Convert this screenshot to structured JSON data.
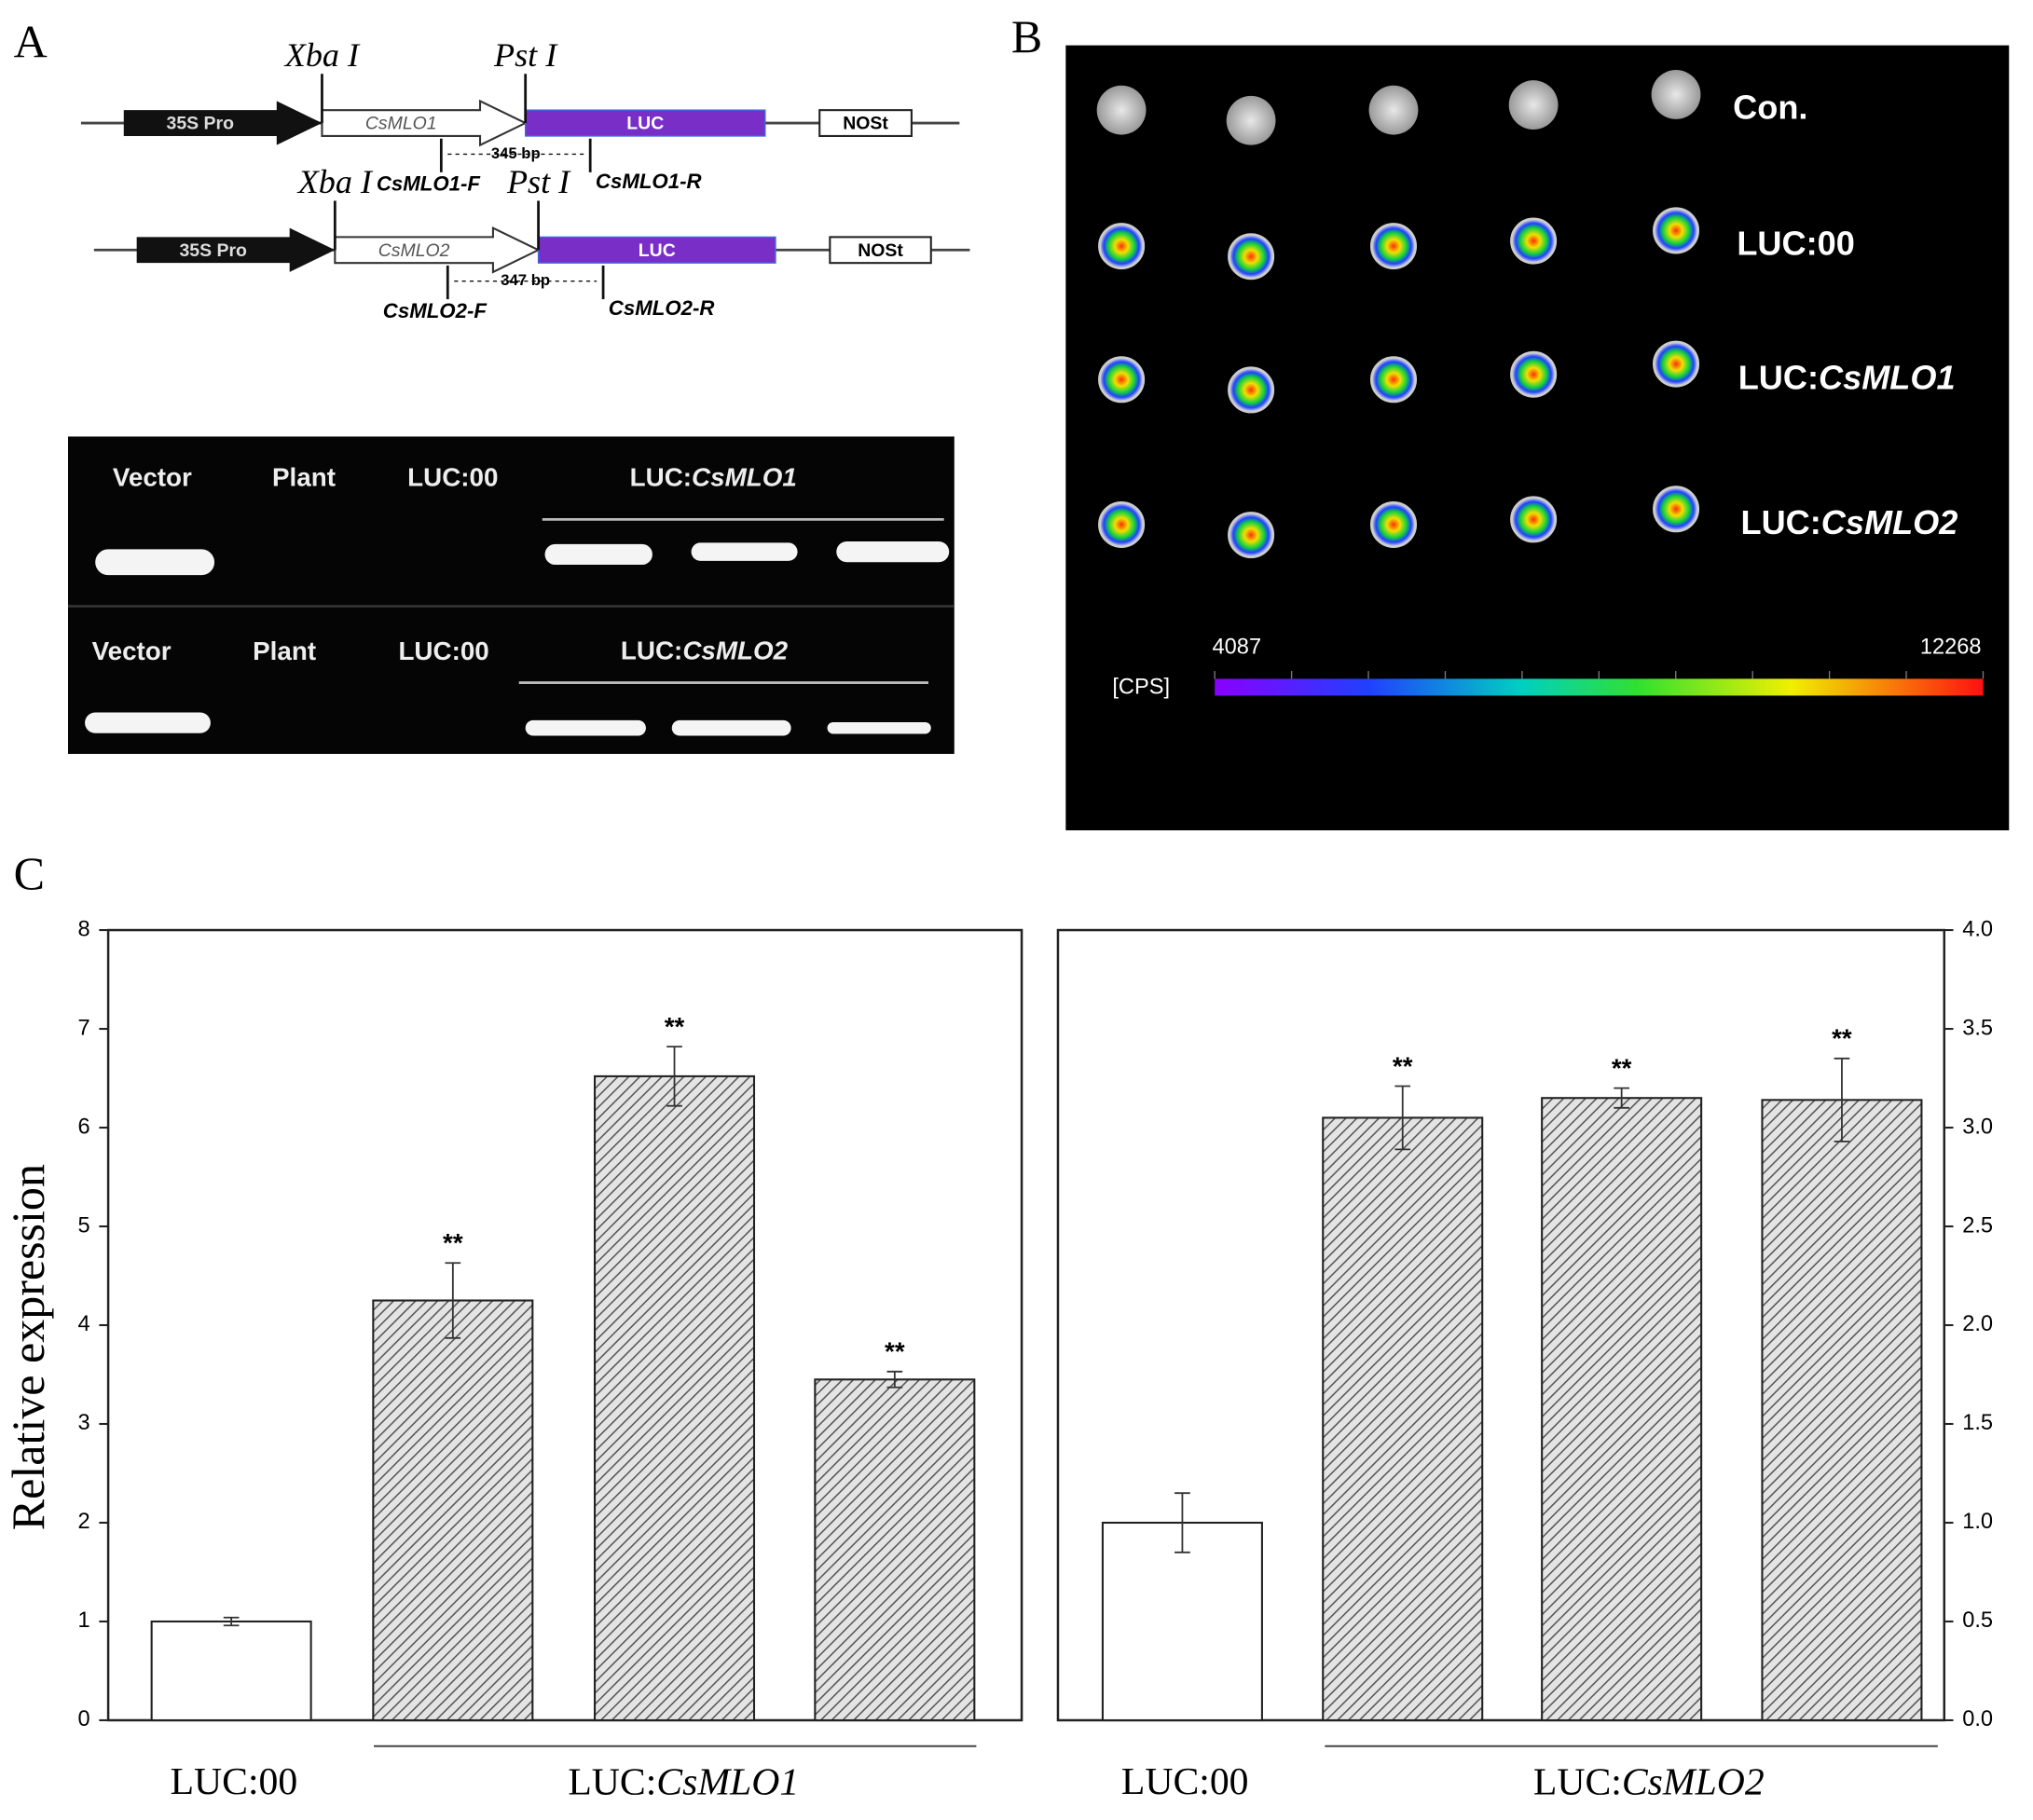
{
  "panel_a": {
    "label": "A",
    "constructs": [
      {
        "site1": "Xba I",
        "site2": "Pst I",
        "promoter": "35S Pro",
        "gene": "CsMLO1",
        "reporter": "LUC",
        "terminator": "NOSt",
        "product": "345 bp",
        "primer_f": "CsMLO1-F",
        "primer_r": "CsMLO1-R"
      },
      {
        "site1": "Xba I",
        "site2": "Pst I",
        "promoter": "35S Pro",
        "gene": "CsMLO2",
        "reporter": "LUC",
        "terminator": "NOSt",
        "product": "347 bp",
        "primer_f": "CsMLO2-F",
        "primer_r": "CsMLO2-R"
      }
    ],
    "gels": [
      {
        "lanes": [
          "Vector",
          "Plant",
          "LUC:00"
        ],
        "group_prefix": "LUC:",
        "group_gene": "CsMLO1"
      },
      {
        "lanes": [
          "Vector",
          "Plant",
          "LUC:00"
        ],
        "group_prefix": "LUC:",
        "group_gene": "CsMLO2"
      }
    ]
  },
  "panel_b": {
    "label": "B",
    "rows": [
      {
        "name": "Con."
      },
      {
        "name": "LUC:00"
      },
      {
        "prefix": "LUC:",
        "gene": "CsMLO1"
      },
      {
        "prefix": "LUC:",
        "gene": "CsMLO2"
      }
    ],
    "scale_unit": "[CPS]",
    "scale_min": 4087,
    "scale_max": 12268
  },
  "panel_c": {
    "label": "C"
  },
  "chart_data": [
    {
      "type": "bar",
      "ylabel": "Relative expression",
      "categories": [
        "LUC:00",
        null,
        null,
        null
      ],
      "group_prefix": "LUC:",
      "group_gene": "CsMLO1",
      "values": [
        1.0,
        4.25,
        6.52,
        3.45
      ],
      "errors": [
        0.04,
        0.38,
        0.3,
        0.08
      ],
      "annotations": [
        null,
        "**",
        "**",
        "**"
      ],
      "hatched": [
        false,
        true,
        true,
        true
      ],
      "ylim": [
        0,
        8
      ],
      "yticks": [
        0,
        1,
        2,
        3,
        4,
        5,
        6,
        7,
        8
      ],
      "axis_side": "left"
    },
    {
      "type": "bar",
      "categories": [
        "LUC:00",
        null,
        null,
        null
      ],
      "group_prefix": "LUC:",
      "group_gene": "CsMLO2",
      "values": [
        1.0,
        3.05,
        3.15,
        3.14
      ],
      "errors": [
        0.15,
        0.16,
        0.05,
        0.21
      ],
      "annotations": [
        null,
        "**",
        "**",
        "**"
      ],
      "hatched": [
        false,
        true,
        true,
        true
      ],
      "ylim": [
        0,
        4
      ],
      "yticks": [
        {
          "value": 0,
          "label": "0.0"
        },
        {
          "value": 0.5,
          "label": "0.5"
        },
        {
          "value": 1,
          "label": "1.0"
        },
        {
          "value": 1.5,
          "label": "1.5"
        },
        {
          "value": 2,
          "label": "2.0"
        },
        {
          "value": 2.5,
          "label": "2.5"
        },
        {
          "value": 3,
          "label": "3.0"
        },
        {
          "value": 3.5,
          "label": "3.5"
        },
        {
          "value": 4,
          "label": "4.0"
        }
      ],
      "axis_side": "right"
    }
  ]
}
